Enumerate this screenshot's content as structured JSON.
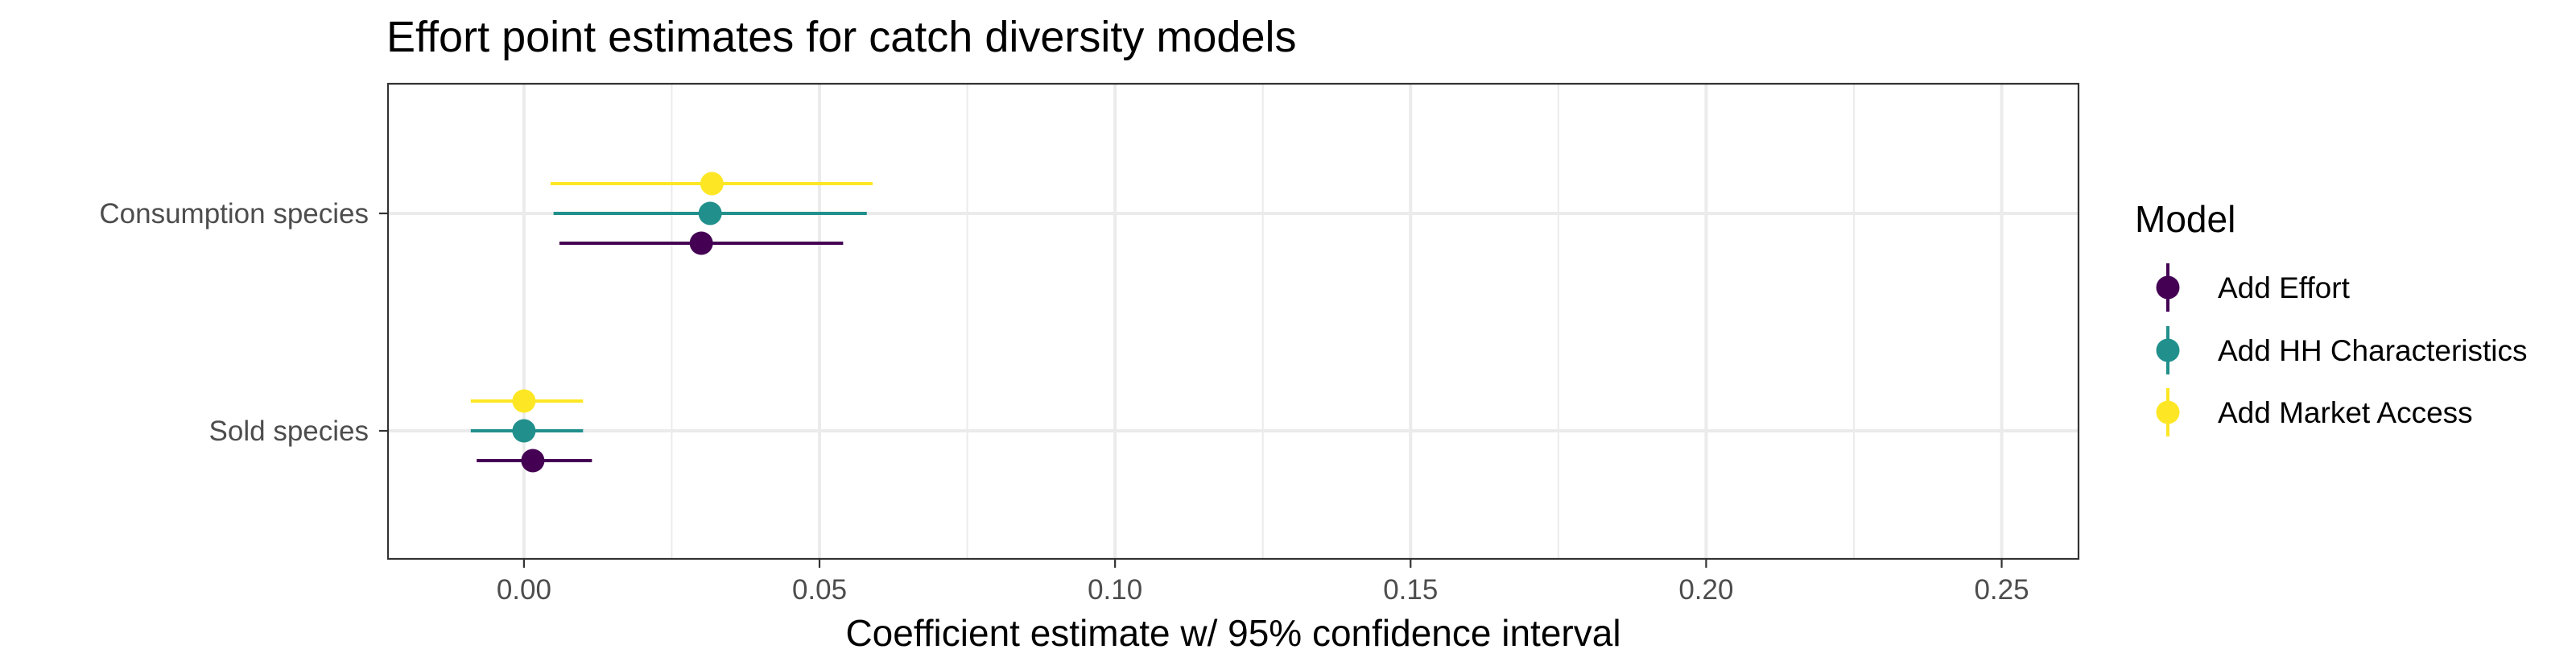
{
  "chart_data": {
    "type": "scatter",
    "title": "Effort point estimates for catch diversity models",
    "xlabel": "Coefficient estimate w/ 95% confidence interval",
    "ylabel": "",
    "xlim": [
      -0.023,
      0.263
    ],
    "x_ticks": [
      0.0,
      0.05,
      0.1,
      0.15,
      0.2,
      0.25
    ],
    "x_tick_labels": [
      "0.00",
      "0.05",
      "0.10",
      "0.15",
      "0.20",
      "0.25"
    ],
    "categories": [
      "Consumption species",
      "Sold species"
    ],
    "grid": true,
    "legend": {
      "title": "Model",
      "placement": "right"
    },
    "series": [
      {
        "name": "Add Effort",
        "color": "#440154",
        "points": [
          {
            "category": "Consumption species",
            "estimate": 0.03,
            "lower": 0.006,
            "upper": 0.054
          },
          {
            "category": "Sold species",
            "estimate": 0.0015,
            "lower": -0.008,
            "upper": 0.0115
          }
        ]
      },
      {
        "name": "Add HH Characteristics",
        "color": "#21908C",
        "points": [
          {
            "category": "Consumption species",
            "estimate": 0.0315,
            "lower": 0.005,
            "upper": 0.058
          },
          {
            "category": "Sold species",
            "estimate": 0.0,
            "lower": -0.009,
            "upper": 0.01
          }
        ]
      },
      {
        "name": "Add Market Access",
        "color": "#FDE725",
        "points": [
          {
            "category": "Consumption species",
            "estimate": 0.0318,
            "lower": 0.0045,
            "upper": 0.059
          },
          {
            "category": "Sold species",
            "estimate": 0.0,
            "lower": -0.009,
            "upper": 0.01
          }
        ]
      }
    ]
  }
}
